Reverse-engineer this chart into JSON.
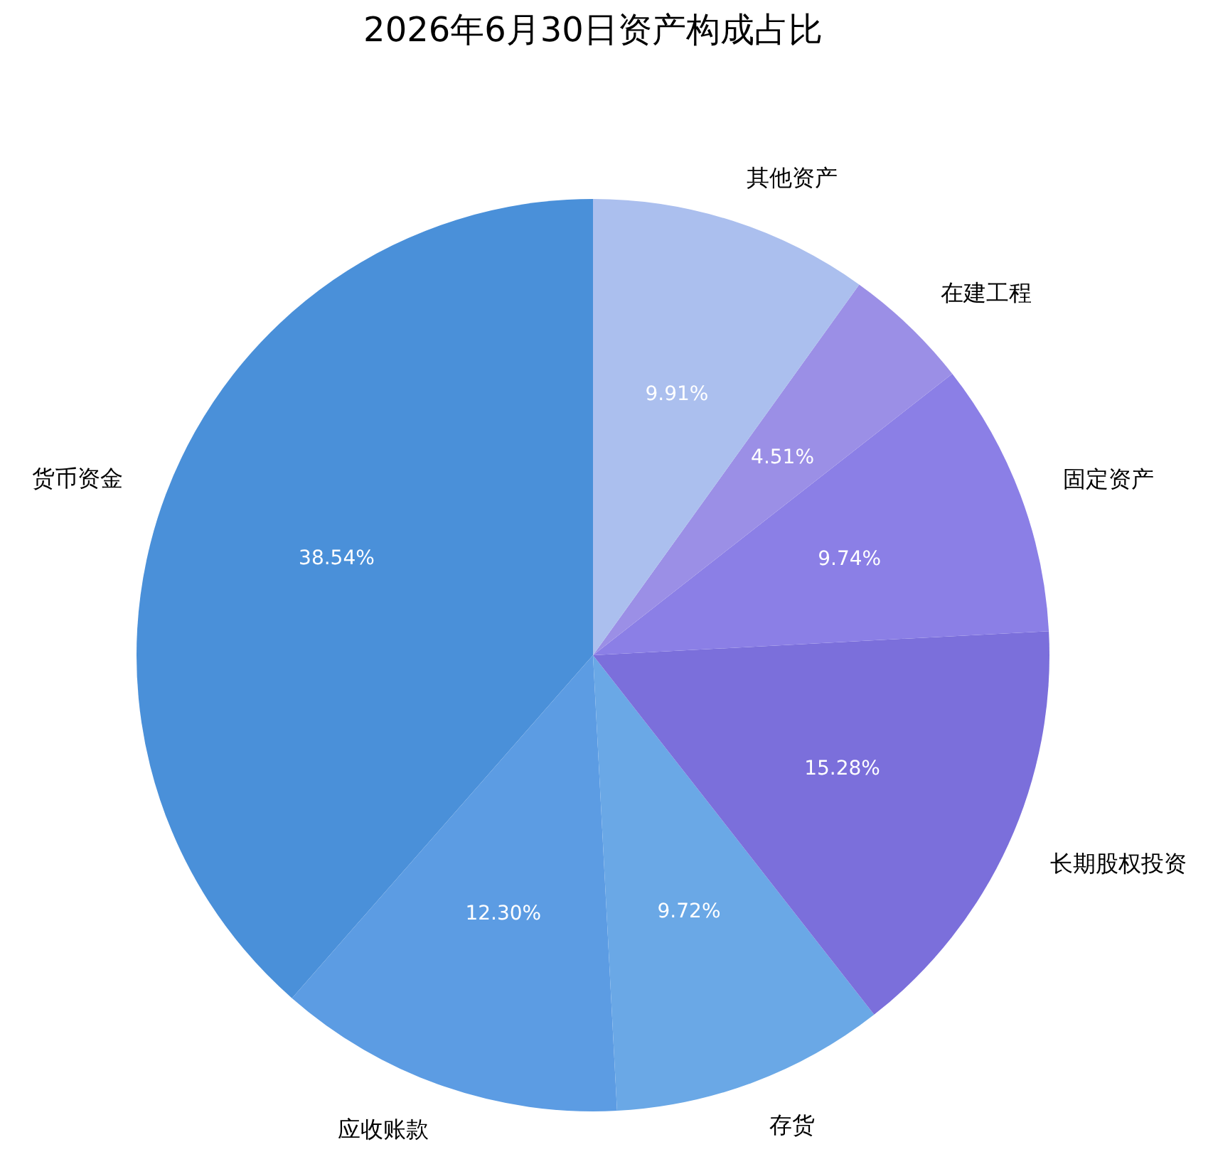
{
  "chart_data": {
    "type": "pie",
    "title": "2026年6月30日资产构成占比",
    "categories": [
      "货币资金",
      "应收账款",
      "存货",
      "长期股权投资",
      "固定资产",
      "在建工程",
      "其他资产"
    ],
    "values": [
      38.54,
      12.3,
      9.72,
      15.28,
      9.74,
      4.51,
      9.91
    ],
    "value_labels": [
      "38.54%",
      "12.30%",
      "9.72%",
      "15.28%",
      "9.74%",
      "4.51%",
      "9.91%"
    ],
    "colors": [
      "#4a90d9",
      "#5c9ce3",
      "#6aa8e6",
      "#7b6fdb",
      "#8b7fe6",
      "#9b8fe6",
      "#abbfee"
    ]
  }
}
